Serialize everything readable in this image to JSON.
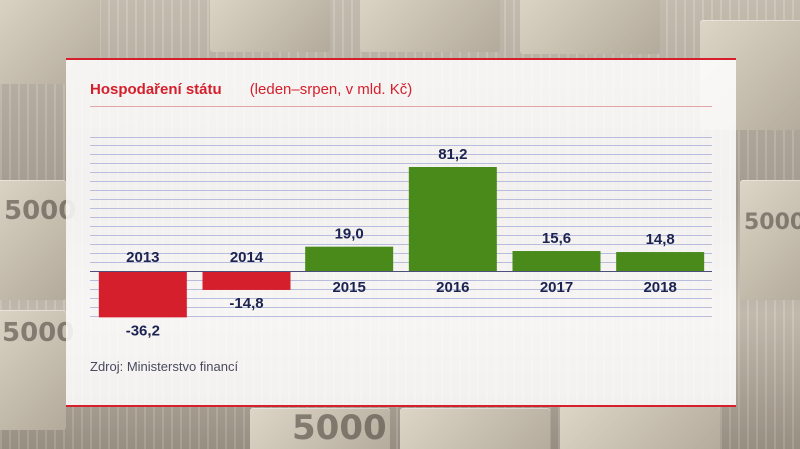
{
  "title": "Hospodaření státu",
  "subtitle": "(leden–srpen, v mld. Kč)",
  "source": "Zdroj: Ministerstvo financí",
  "colors": {
    "accent": "#d51f2c",
    "positive": "#4a8a1b",
    "negative": "#d51f2c",
    "label": "#1c2350",
    "grid": "#b9bddd"
  },
  "background": {
    "banknote_text_1": "5000",
    "banknote_text_2": "5000",
    "banknote_text_3": "5000",
    "banknote_text_4": "5000"
  },
  "chart_data": {
    "type": "bar",
    "categories": [
      "2013",
      "2014",
      "2015",
      "2016",
      "2017",
      "2018"
    ],
    "values": [
      -36.2,
      -14.8,
      19.0,
      81.2,
      15.6,
      14.8
    ],
    "value_labels": [
      "-36,2",
      "-14,8",
      "19,0",
      "81,2",
      "15,6",
      "14,8"
    ],
    "title": "Hospodaření státu",
    "subtitle": "(leden–srpen, v mld. Kč)",
    "ylim": [
      -50,
      100
    ],
    "grid": true,
    "legend": "none"
  }
}
